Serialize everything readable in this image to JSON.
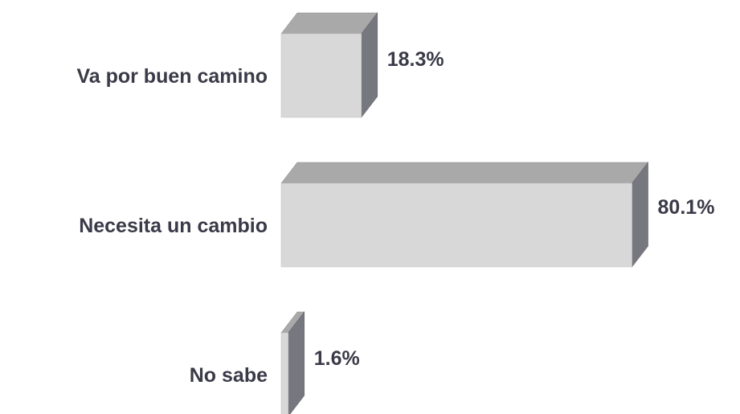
{
  "chart_data": {
    "type": "bar",
    "orientation": "horizontal",
    "style": "3d",
    "categories": [
      "Va por buen camino",
      "Necesita un cambio",
      "No sabe"
    ],
    "values": [
      18.3,
      80.1,
      1.6
    ],
    "value_labels": [
      "18.3%",
      "80.1%",
      "1.6%"
    ],
    "title": "",
    "xlabel": "",
    "ylabel": "",
    "xlim": [
      0,
      100
    ],
    "grid": false,
    "legend": "none",
    "colors": {
      "front": "#d8d8d8",
      "top": "#a9a9a9",
      "side": "#77777f",
      "text": "#3a3a48"
    }
  }
}
